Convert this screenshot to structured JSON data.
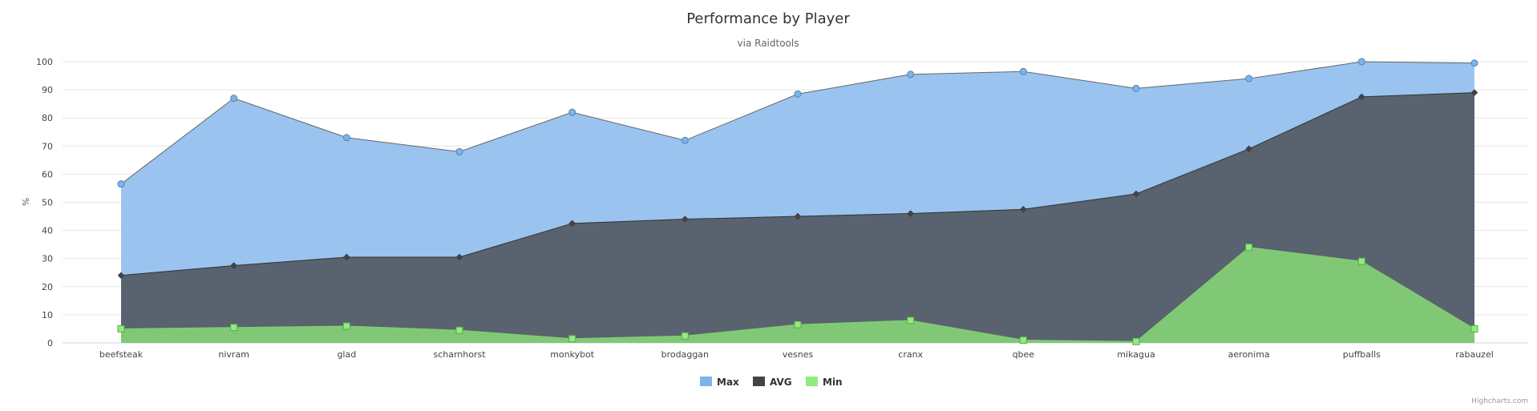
{
  "chart_data": {
    "type": "area",
    "title": "Performance by Player",
    "subtitle": "via Raidtools",
    "ylabel": "%",
    "xlabel": "",
    "ylim": [
      0,
      100
    ],
    "yticks": [
      0,
      10,
      20,
      30,
      40,
      50,
      60,
      70,
      80,
      90,
      100
    ],
    "grid": true,
    "legend_position": "bottom-center",
    "categories": [
      "beefsteak",
      "nivram",
      "glad",
      "scharnhorst",
      "monkybot",
      "brodaggan",
      "vesnes",
      "cranx",
      "qbee",
      "mikagua",
      "aeronima",
      "puffballs",
      "rabauzel"
    ],
    "series": [
      {
        "name": "Max",
        "color": "#7cb5ec",
        "fill": "#9ac4ef",
        "marker": "circle",
        "values": [
          56.5,
          87,
          73,
          68,
          82,
          72,
          88.5,
          95.5,
          96.5,
          90.5,
          94,
          100,
          99.5
        ]
      },
      {
        "name": "AVG",
        "color": "#434348",
        "fill": "#59626f",
        "marker": "diamond",
        "values": [
          24,
          27.5,
          30.5,
          30.5,
          42.5,
          44,
          45,
          46,
          47.5,
          53,
          69,
          87.5,
          89
        ]
      },
      {
        "name": "Min",
        "color": "#90ed7d",
        "fill": "#80c876",
        "marker": "square",
        "values": [
          5,
          5.5,
          6,
          4.5,
          1.5,
          2.5,
          6.5,
          8,
          1,
          0.5,
          34,
          29,
          5
        ]
      }
    ]
  },
  "credits": "Highcharts.com"
}
